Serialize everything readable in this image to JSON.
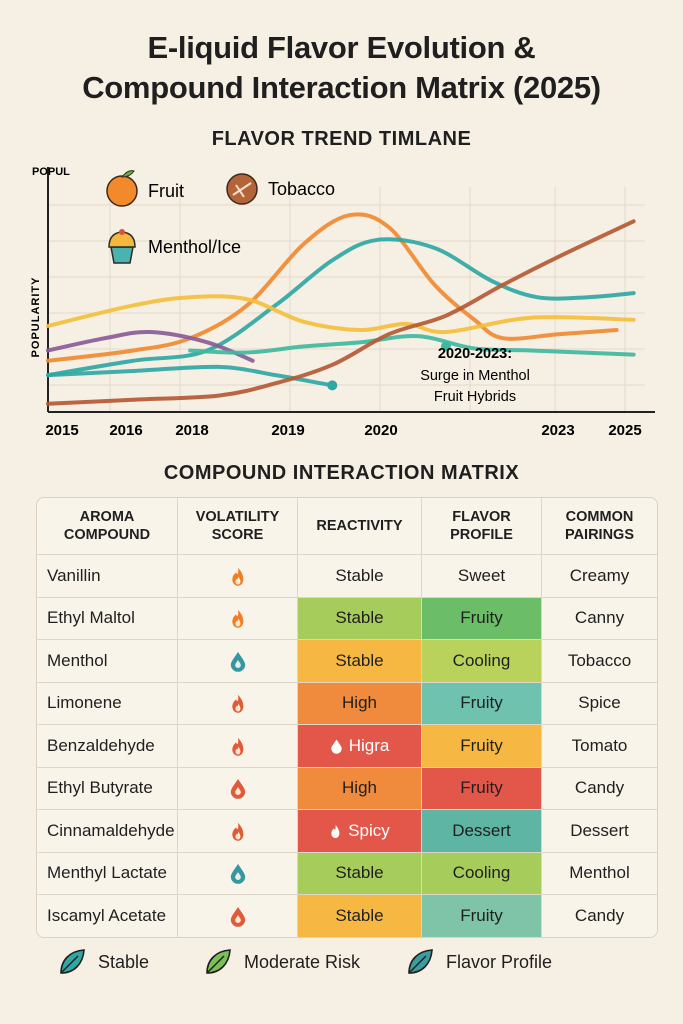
{
  "title": {
    "line1": "E-liquid Flavor Evolution &",
    "line2": "Compound Interaction Matrix (2025)"
  },
  "chart_data": {
    "type": "line",
    "title": "FLAVOR TREND TIMLANE",
    "ylabel": "POPULARITY",
    "ylabel_top": "POPUL",
    "x_tick_labels": [
      "2015",
      "2016",
      "2018",
      "2019",
      "2020",
      "2023",
      "2025"
    ],
    "x_ticks": [
      2015,
      2016,
      2018,
      2019,
      2020,
      2023,
      2025
    ],
    "xlim": [
      2015,
      2025.5
    ],
    "ylim": [
      0,
      100
    ],
    "grid": true,
    "legend": [
      {
        "name": "Fruit",
        "icon": "orange-fruit-icon"
      },
      {
        "name": "Tobacco",
        "icon": "tobacco-leaf-icon"
      },
      {
        "name": "Menthol/Ice",
        "icon": "ice-cream-icon"
      }
    ],
    "series": [
      {
        "color": "#ef8a32",
        "x": [
          2015,
          2016.5,
          2017.5,
          2018.5,
          2019.5,
          2020.3,
          2021,
          2021.8,
          2022.5,
          2023,
          2024,
          2025
        ],
        "values": [
          25,
          30,
          36,
          52,
          82,
          96,
          90,
          62,
          45,
          36,
          38,
          40
        ]
      },
      {
        "color": "#2fa8a5",
        "x": [
          2015,
          2016.5,
          2017.8,
          2019,
          2020,
          2020.8,
          2021.8,
          2022.8,
          2023.6,
          2024.5,
          2025.3
        ],
        "values": [
          18,
          25,
          30,
          52,
          74,
          84,
          80,
          64,
          56,
          56,
          58
        ]
      },
      {
        "color": "#f2c03c",
        "x": [
          2015,
          2016.5,
          2017.5,
          2018.5,
          2019.5,
          2020.5,
          2021.3,
          2022,
          2023.5,
          2025.3
        ],
        "values": [
          42,
          52,
          56,
          55,
          44,
          40,
          43,
          39,
          46,
          45
        ]
      },
      {
        "color": "#8a5c98",
        "x": [
          2015,
          2016,
          2016.8,
          2017.8,
          2018.6
        ],
        "values": [
          30,
          36,
          39,
          34,
          25
        ]
      },
      {
        "color": "#3fb9a0",
        "x": [
          2017.5,
          2018.5,
          2019.5,
          2020.5,
          2021.5,
          2022.5,
          2023.5,
          2025.3
        ],
        "values": [
          30,
          29,
          32,
          34,
          37,
          31,
          30,
          28
        ]
      },
      {
        "color": "#2fa8a5",
        "x": [
          2015,
          2016.5,
          2018,
          2019,
          2019.8,
          2020
        ],
        "values": [
          18,
          20,
          22,
          18,
          14,
          13
        ]
      },
      {
        "color": "#b45a34",
        "x": [
          2015,
          2016.5,
          2018,
          2019,
          2020,
          2021,
          2022,
          2023,
          2024,
          2025.3
        ],
        "values": [
          4,
          6,
          8,
          14,
          23,
          38,
          47,
          62,
          76,
          93
        ]
      }
    ],
    "annotation": {
      "line1": "2020-2023:",
      "line2": "Surge in Menthol",
      "line3": "Fruit Hybrids"
    }
  },
  "matrix": {
    "title": "COMPOUND INTERACTION MATRIX",
    "headers": [
      [
        "AROMA",
        "COMPOUND"
      ],
      [
        "VOLATILITY",
        "SCORE"
      ],
      [
        "REACTIVITY"
      ],
      [
        "FLAVOR",
        "PROFILE"
      ],
      [
        "COMMON",
        "PAIRINGS"
      ]
    ],
    "rows": [
      {
        "compound": "Vanillin",
        "vol_icon": "flame-icon",
        "vol_color": "#f07e28",
        "reactivity": "Stable",
        "react_color": "",
        "react_icon": "",
        "profile": "Sweet",
        "profile_color": "",
        "pairing": "Creamy"
      },
      {
        "compound": "Ethyl Maltol",
        "vol_icon": "flame-icon",
        "vol_color": "#f07e28",
        "reactivity": "Stable",
        "react_color": "#a6cd5c",
        "react_icon": "",
        "profile": "Fruity",
        "profile_color": "#6cbd67",
        "pairing": "Canny"
      },
      {
        "compound": "Menthol",
        "vol_icon": "droplet-icon",
        "vol_color": "#3597a4",
        "reactivity": "Stable",
        "react_color": "#f7b843",
        "react_icon": "",
        "profile": "Cooling",
        "profile_color": "#b9d25b",
        "pairing": "Tobacco"
      },
      {
        "compound": "Limonene",
        "vol_icon": "flame-icon",
        "vol_color": "#e25a38",
        "reactivity": "High",
        "react_color": "#f08a3c",
        "react_icon": "",
        "profile": "Fruity",
        "profile_color": "#6fc3ae",
        "pairing": "Spice"
      },
      {
        "compound": "Benzaldehyde",
        "vol_icon": "flame-icon",
        "vol_color": "#e25a38",
        "reactivity": "Higra",
        "react_color": "#e2574a",
        "react_icon": "droplet-icon",
        "profile": "Fruity",
        "profile_color": "#f7b843",
        "pairing": "Tomato"
      },
      {
        "compound": "Ethyl Butyrate",
        "vol_icon": "droplet-icon",
        "vol_color": "#e25a38",
        "reactivity": "High",
        "react_color": "#f08a3c",
        "react_icon": "",
        "profile": "Fruity",
        "profile_color": "#e2574a",
        "pairing": "Candy"
      },
      {
        "compound": "Cinnamaldehyde",
        "vol_icon": "flame-icon",
        "vol_color": "#e25a38",
        "reactivity": "Spicy",
        "react_color": "#e2574a",
        "react_icon": "flame-icon",
        "profile": "Dessert",
        "profile_color": "#5fb5a3",
        "pairing": "Dessert"
      },
      {
        "compound": "Menthyl Lactate",
        "vol_icon": "droplet-icon",
        "vol_color": "#3597a4",
        "reactivity": "Stable",
        "react_color": "#a6cd5c",
        "react_icon": "",
        "profile": "Cooling",
        "profile_color": "#a6cd5c",
        "pairing": "Menthol"
      },
      {
        "compound": "Iscamyl Acetate",
        "vol_icon": "droplet-icon",
        "vol_color": "#e25a38",
        "reactivity": "Stable",
        "react_color": "#f7b843",
        "react_icon": "",
        "profile": "Fruity",
        "profile_color": "#7fc4a8",
        "pairing": "Candy"
      }
    ]
  },
  "legend": [
    {
      "label": "Stable",
      "icon": "leaf-icon",
      "color": "#2fa8a5"
    },
    {
      "label": "Moderate Risk",
      "icon": "leaf-icon",
      "color": "#7bbf58"
    },
    {
      "label": "Flavor Profile",
      "icon": "leaf-icon",
      "color": "#3a9ea0"
    }
  ]
}
